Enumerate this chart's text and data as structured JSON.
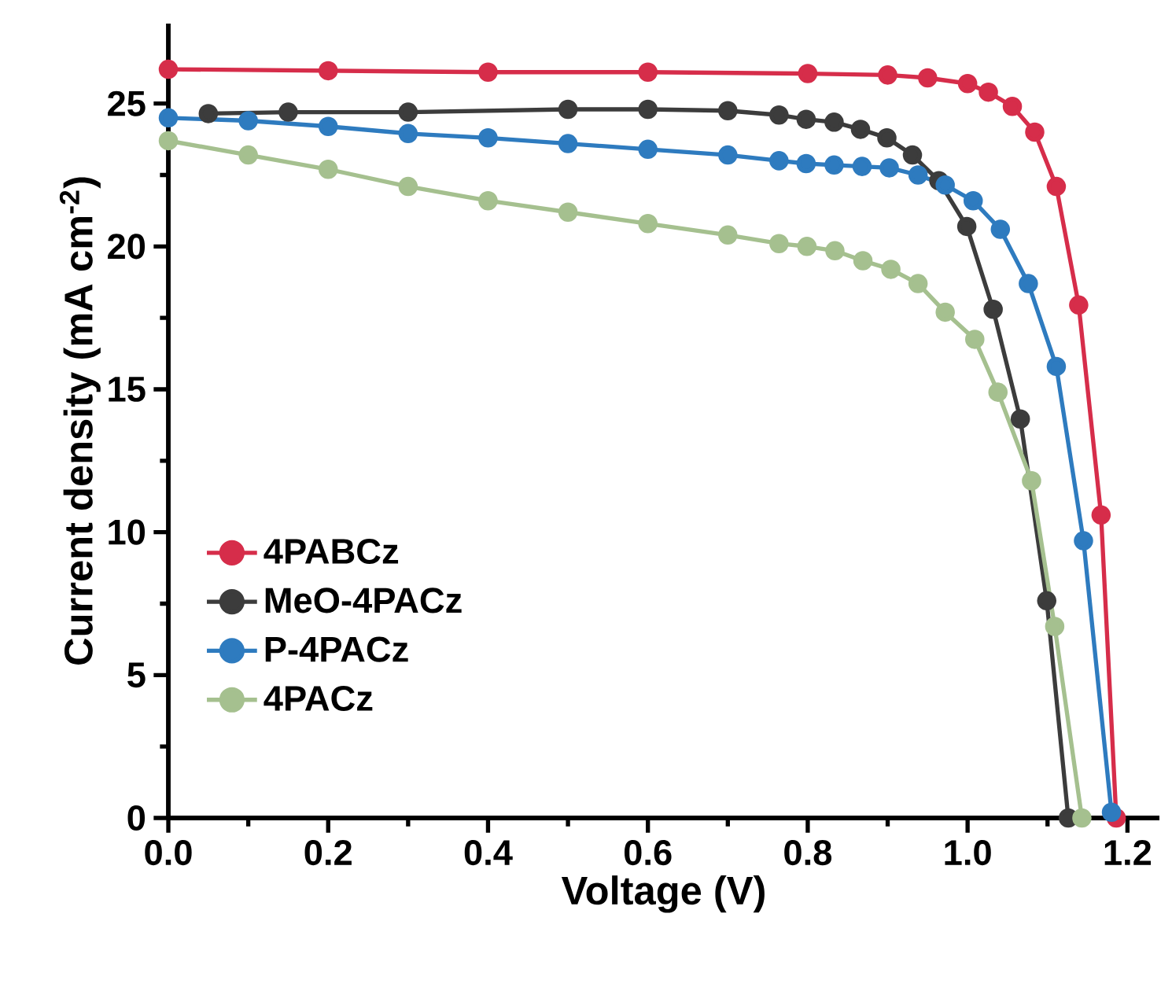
{
  "chart_data": {
    "type": "line",
    "xlabel": "Voltage (V)",
    "ylabel": "Current density (mA cm$^{-2}$)",
    "xlim": [
      0,
      1.24
    ],
    "ylim": [
      0,
      27.8
    ],
    "xticks": [
      {
        "value": 0,
        "label": "0.0"
      },
      {
        "value": 0.2,
        "label": "0.2"
      },
      {
        "value": 0.4,
        "label": "0.4"
      },
      {
        "value": 0.6,
        "label": "0.6"
      },
      {
        "value": 0.8,
        "label": "0.8"
      },
      {
        "value": 1.0,
        "label": "1.0"
      },
      {
        "value": 1.2,
        "label": "1.2"
      }
    ],
    "yticks": [
      0,
      5,
      10,
      15,
      20,
      25
    ],
    "grid": false,
    "legend": "bottom left",
    "marker": "circle",
    "line_style": "solid",
    "series": [
      {
        "name": "4PABCz",
        "color": "#d62d4a",
        "x": [
          0,
          0.2,
          0.4,
          0.6,
          0.8,
          0.9,
          0.95,
          1.0,
          1.026,
          1.056,
          1.084,
          1.111,
          1.139,
          1.167,
          1.186
        ],
        "values": [
          26.2,
          26.15,
          26.1,
          26.1,
          26.05,
          26.0,
          25.9,
          25.7,
          25.4,
          24.9,
          24.0,
          22.1,
          17.95,
          10.6,
          0
        ]
      },
      {
        "name": "MeO-4PACz",
        "color": "#3c3c3c",
        "x": [
          0.05,
          0.15,
          0.3,
          0.5,
          0.6,
          0.7,
          0.764,
          0.798,
          0.833,
          0.866,
          0.899,
          0.931,
          0.964,
          0.999,
          1.032,
          1.066,
          1.099,
          1.126
        ],
        "values": [
          24.65,
          24.7,
          24.7,
          24.8,
          24.8,
          24.75,
          24.6,
          24.45,
          24.35,
          24.1,
          23.8,
          23.2,
          22.3,
          20.7,
          17.8,
          13.96,
          7.6,
          0
        ]
      },
      {
        "name": "P-4PACz",
        "color": "#2e7bbf",
        "x": [
          0,
          0.1,
          0.2,
          0.3,
          0.4,
          0.5,
          0.6,
          0.7,
          0.764,
          0.798,
          0.833,
          0.868,
          0.902,
          0.938,
          0.972,
          1.007,
          1.041,
          1.076,
          1.111,
          1.145,
          1.18
        ],
        "values": [
          24.5,
          24.4,
          24.2,
          23.95,
          23.8,
          23.6,
          23.4,
          23.2,
          23.0,
          22.9,
          22.85,
          22.8,
          22.75,
          22.5,
          22.15,
          21.6,
          20.6,
          18.7,
          15.8,
          9.7,
          0.2
        ]
      },
      {
        "name": "4PACz",
        "color": "#a5c08f",
        "x": [
          0,
          0.1,
          0.2,
          0.3,
          0.4,
          0.5,
          0.6,
          0.7,
          0.764,
          0.799,
          0.834,
          0.869,
          0.904,
          0.938,
          0.972,
          1.009,
          1.038,
          1.08,
          1.109,
          1.143
        ],
        "values": [
          23.7,
          23.2,
          22.7,
          22.1,
          21.6,
          21.2,
          20.8,
          20.4,
          20.1,
          20.0,
          19.85,
          19.5,
          19.2,
          18.7,
          17.7,
          16.75,
          14.9,
          11.8,
          6.7,
          0
        ]
      }
    ]
  }
}
